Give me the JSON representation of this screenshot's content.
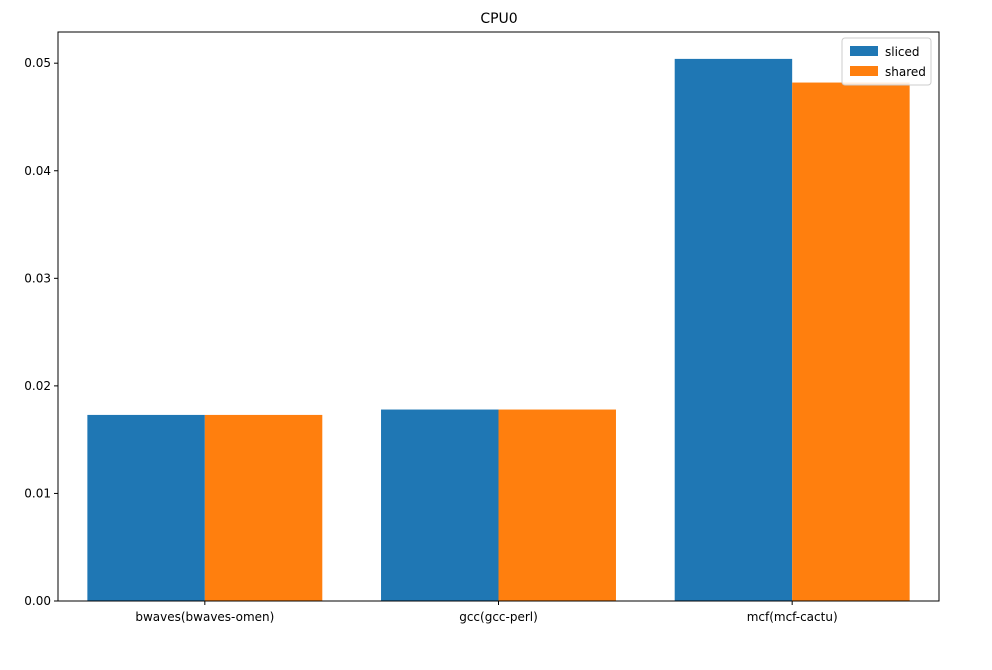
{
  "chart_data": {
    "type": "bar",
    "title": "CPU0",
    "xlabel": "",
    "ylabel": "",
    "categories": [
      "bwaves(bwaves-omen)",
      "gcc(gcc-perl)",
      "mcf(mcf-cactu)"
    ],
    "series": [
      {
        "name": "sliced",
        "color": "#1f77b4",
        "values": [
          0.0173,
          0.0178,
          0.0504
        ]
      },
      {
        "name": "shared",
        "color": "#ff7f0e",
        "values": [
          0.0173,
          0.0178,
          0.0482
        ]
      }
    ],
    "ylim": [
      0,
      0.0529
    ],
    "yticks": [
      0.0,
      0.01,
      0.02,
      0.03,
      0.04,
      0.05
    ],
    "ytick_labels": [
      "0.00",
      "0.01",
      "0.02",
      "0.03",
      "0.04",
      "0.05"
    ],
    "grid": false,
    "legend_position": "top-right"
  }
}
